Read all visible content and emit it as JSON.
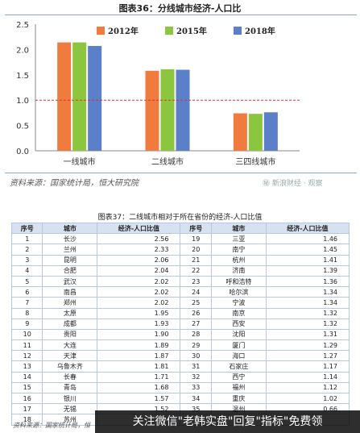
{
  "figure_title": "图表36：分线城市经济-人口比",
  "source_top": "资料来源：国家统计局，恒大研究院",
  "watermark": "㊙ 新浪财经 · 观察",
  "chart_data": {
    "type": "bar",
    "categories": [
      "一线城市",
      "二线城市",
      "三四线城市"
    ],
    "series": [
      {
        "name": "2012年",
        "values": [
          2.14,
          1.58,
          0.74
        ]
      },
      {
        "name": "2015年",
        "values": [
          2.14,
          1.61,
          0.73
        ]
      },
      {
        "name": "2018年",
        "values": [
          2.07,
          1.6,
          0.76
        ]
      }
    ],
    "ylim": [
      0,
      2.5
    ],
    "yticks": [
      "0.0",
      "0.5",
      "1.0",
      "1.5",
      "2.0",
      "2.5"
    ],
    "reference_line": 1.0,
    "legend_position": "top",
    "colors": [
      "#f07b3f",
      "#8cc63e",
      "#5b7fc8"
    ],
    "reference_color": "#e0302a"
  },
  "table": {
    "title": "图表37：二线城市相对于所在省份的经济-人口比值",
    "headers": [
      "序号",
      "城市",
      "经济-人口比值",
      "序号",
      "城市",
      "经济-人口比值"
    ],
    "rows": [
      [
        "1",
        "长沙",
        "2.56",
        "19",
        "三亚",
        "1.46"
      ],
      [
        "2",
        "兰州",
        "2.33",
        "20",
        "南宁",
        "1.45"
      ],
      [
        "3",
        "昆明",
        "2.06",
        "21",
        "杭州",
        "1.41"
      ],
      [
        "4",
        "合肥",
        "2.04",
        "22",
        "济南",
        "1.39"
      ],
      [
        "5",
        "武汉",
        "2.02",
        "23",
        "呼和浩特",
        "1.36"
      ],
      [
        "6",
        "南昌",
        "2.02",
        "24",
        "哈尔滨",
        "1.34"
      ],
      [
        "7",
        "郑州",
        "2.02",
        "25",
        "宁波",
        "1.34"
      ],
      [
        "8",
        "太原",
        "1.95",
        "26",
        "南京",
        "1.32"
      ],
      [
        "9",
        "成都",
        "1.93",
        "27",
        "西安",
        "1.32"
      ],
      [
        "10",
        "贵阳",
        "1.90",
        "28",
        "沈阳",
        "1.31"
      ],
      [
        "11",
        "大连",
        "1.89",
        "29",
        "厦门",
        "1.29"
      ],
      [
        "12",
        "天津",
        "1.87",
        "30",
        "海口",
        "1.27"
      ],
      [
        "13",
        "乌鲁木齐",
        "1.81",
        "31",
        "石家庄",
        "1.17"
      ],
      [
        "14",
        "长春",
        "1.71",
        "32",
        "西宁",
        "1.14"
      ],
      [
        "15",
        "青岛",
        "1.68",
        "33",
        "福州",
        "1.12"
      ],
      [
        "16",
        "银川",
        "1.57",
        "34",
        "重庆",
        "1.02"
      ],
      [
        "17",
        "无锡",
        "1.52",
        "35",
        "温州",
        "0.66"
      ],
      [
        "18",
        "苏州",
        "",
        "",
        "",
        ""
      ]
    ]
  },
  "source_bottom": "资料来源：国家统计局，恒",
  "banner_text": "关注微信\"老韩实盘\"回复\"指标\"免费领"
}
